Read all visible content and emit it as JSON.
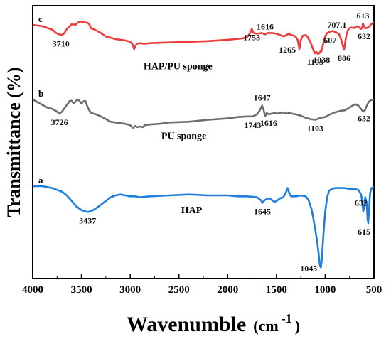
{
  "chart_data": {
    "type": "line",
    "title": "",
    "xlabel": "Wavenumble",
    "xlabel_unit": "(cm",
    "xlabel_unit_sup": "-1",
    "xlabel_unit_close": ")",
    "ylabel": "Transmittance (%)",
    "xlim": [
      4000,
      500
    ],
    "x_reversed": true,
    "x_ticks": [
      4000,
      3500,
      3000,
      2500,
      2000,
      1500,
      1000,
      500
    ],
    "grid": false,
    "legend": "none",
    "series": [
      {
        "name": "HAP/PU sponge",
        "curve_label": "c",
        "color": "#ee3b3b",
        "offset": 0,
        "points": [
          [
            4000,
            0.0
          ],
          [
            3900,
            0.02
          ],
          [
            3800,
            0.07
          ],
          [
            3760,
            0.12
          ],
          [
            3710,
            0.15
          ],
          [
            3680,
            0.13
          ],
          [
            3650,
            0.06
          ],
          [
            3620,
            0.02
          ],
          [
            3600,
            -0.01
          ],
          [
            3560,
            0.0
          ],
          [
            3540,
            -0.03
          ],
          [
            3510,
            -0.05
          ],
          [
            3480,
            -0.04
          ],
          [
            3440,
            -0.03
          ],
          [
            3420,
            -0.01
          ],
          [
            3400,
            0.05
          ],
          [
            3350,
            0.08
          ],
          [
            3300,
            0.12
          ],
          [
            3250,
            0.17
          ],
          [
            3200,
            0.19
          ],
          [
            3150,
            0.21
          ],
          [
            3100,
            0.22
          ],
          [
            3050,
            0.23
          ],
          [
            3000,
            0.25
          ],
          [
            2975,
            0.29
          ],
          [
            2960,
            0.36
          ],
          [
            2945,
            0.31
          ],
          [
            2930,
            0.28
          ],
          [
            2900,
            0.27
          ],
          [
            2855,
            0.28
          ],
          [
            2800,
            0.27
          ],
          [
            2600,
            0.26
          ],
          [
            2400,
            0.25
          ],
          [
            2200,
            0.24
          ],
          [
            2000,
            0.22
          ],
          [
            1850,
            0.2
          ],
          [
            1800,
            0.18
          ],
          [
            1770,
            0.12
          ],
          [
            1753,
            0.06
          ],
          [
            1735,
            0.12
          ],
          [
            1700,
            0.13
          ],
          [
            1650,
            0.12
          ],
          [
            1616,
            0.14
          ],
          [
            1590,
            0.12
          ],
          [
            1550,
            0.12
          ],
          [
            1500,
            0.13
          ],
          [
            1460,
            0.15
          ],
          [
            1420,
            0.17
          ],
          [
            1400,
            0.15
          ],
          [
            1370,
            0.13
          ],
          [
            1350,
            0.15
          ],
          [
            1320,
            0.16
          ],
          [
            1300,
            0.18
          ],
          [
            1280,
            0.23
          ],
          [
            1265,
            0.36
          ],
          [
            1252,
            0.23
          ],
          [
            1230,
            0.16
          ],
          [
            1200,
            0.15
          ],
          [
            1180,
            0.18
          ],
          [
            1150,
            0.26
          ],
          [
            1120,
            0.38
          ],
          [
            1103,
            0.42
          ],
          [
            1090,
            0.4
          ],
          [
            1075,
            0.43
          ],
          [
            1060,
            0.42
          ],
          [
            1045,
            0.38
          ],
          [
            1038,
            0.39
          ],
          [
            1020,
            0.28
          ],
          [
            1000,
            0.17
          ],
          [
            980,
            0.12
          ],
          [
            950,
            0.1
          ],
          [
            920,
            0.09
          ],
          [
            890,
            0.11
          ],
          [
            860,
            0.13
          ],
          [
            840,
            0.2
          ],
          [
            820,
            0.3
          ],
          [
            806,
            0.37
          ],
          [
            795,
            0.26
          ],
          [
            780,
            0.13
          ],
          [
            760,
            0.06
          ],
          [
            740,
            0.04
          ],
          [
            720,
            0.04
          ],
          [
            707,
            0.05
          ],
          [
            690,
            0.03
          ],
          [
            670,
            0.02
          ],
          [
            650,
            0.04
          ],
          [
            632,
            0.06
          ],
          [
            620,
            0.04
          ],
          [
            613,
            -0.02
          ],
          [
            600,
            0.03
          ],
          [
            590,
            0.05
          ],
          [
            560,
            0.04
          ],
          [
            540,
            0.01
          ],
          [
            520,
            -0.02
          ],
          [
            500,
            -0.04
          ]
        ],
        "peaks": [
          {
            "label": "3710",
            "x": 3710,
            "pos": "below"
          },
          {
            "label": "1753",
            "x": 1753,
            "pos": "below"
          },
          {
            "label": "1616",
            "x": 1616,
            "pos": "above"
          },
          {
            "label": "1265",
            "x": 1265,
            "pos": "left"
          },
          {
            "label": "1103",
            "x": 1103,
            "pos": "below"
          },
          {
            "label": "1038",
            "x": 1038,
            "pos": "below"
          },
          {
            "label": "607",
            "x": 950,
            "pos": "below"
          },
          {
            "label": "707.1",
            "x": 880,
            "pos": "above"
          },
          {
            "label": "806",
            "x": 806,
            "pos": "below"
          },
          {
            "label": "613",
            "x": 613,
            "pos": "above"
          },
          {
            "label": "632",
            "x": 560,
            "pos": "below"
          }
        ]
      },
      {
        "name": "PU sponge",
        "curve_label": "b",
        "color": "#6e6e6e",
        "offset": 1,
        "points": [
          [
            4000,
            0.0
          ],
          [
            3950,
            0.04
          ],
          [
            3900,
            0.08
          ],
          [
            3850,
            0.12
          ],
          [
            3800,
            0.14
          ],
          [
            3760,
            0.17
          ],
          [
            3726,
            0.21
          ],
          [
            3700,
            0.18
          ],
          [
            3670,
            0.12
          ],
          [
            3640,
            0.06
          ],
          [
            3620,
            0.02
          ],
          [
            3600,
            0.02
          ],
          [
            3580,
            0.06
          ],
          [
            3560,
            0.03
          ],
          [
            3540,
            0.0
          ],
          [
            3520,
            0.02
          ],
          [
            3500,
            0.06
          ],
          [
            3480,
            0.03
          ],
          [
            3460,
            0.02
          ],
          [
            3440,
            0.1
          ],
          [
            3420,
            0.16
          ],
          [
            3400,
            0.2
          ],
          [
            3350,
            0.22
          ],
          [
            3300,
            0.25
          ],
          [
            3250,
            0.29
          ],
          [
            3200,
            0.33
          ],
          [
            3150,
            0.34
          ],
          [
            3100,
            0.35
          ],
          [
            3050,
            0.36
          ],
          [
            3000,
            0.38
          ],
          [
            2970,
            0.42
          ],
          [
            2950,
            0.39
          ],
          [
            2930,
            0.41
          ],
          [
            2900,
            0.4
          ],
          [
            2870,
            0.41
          ],
          [
            2850,
            0.38
          ],
          [
            2800,
            0.37
          ],
          [
            2700,
            0.36
          ],
          [
            2600,
            0.34
          ],
          [
            2400,
            0.33
          ],
          [
            2200,
            0.3
          ],
          [
            2000,
            0.28
          ],
          [
            1900,
            0.26
          ],
          [
            1800,
            0.25
          ],
          [
            1743,
            0.25
          ],
          [
            1700,
            0.22
          ],
          [
            1670,
            0.16
          ],
          [
            1647,
            0.09
          ],
          [
            1630,
            0.16
          ],
          [
            1616,
            0.25
          ],
          [
            1600,
            0.2
          ],
          [
            1580,
            0.22
          ],
          [
            1550,
            0.21
          ],
          [
            1520,
            0.2
          ],
          [
            1500,
            0.21
          ],
          [
            1460,
            0.2
          ],
          [
            1430,
            0.19
          ],
          [
            1400,
            0.21
          ],
          [
            1370,
            0.2
          ],
          [
            1340,
            0.21
          ],
          [
            1300,
            0.22
          ],
          [
            1250,
            0.24
          ],
          [
            1200,
            0.27
          ],
          [
            1150,
            0.29
          ],
          [
            1103,
            0.3
          ],
          [
            1080,
            0.29
          ],
          [
            1050,
            0.27
          ],
          [
            1000,
            0.26
          ],
          [
            950,
            0.22
          ],
          [
            900,
            0.19
          ],
          [
            850,
            0.17
          ],
          [
            800,
            0.16
          ],
          [
            760,
            0.13
          ],
          [
            720,
            0.09
          ],
          [
            690,
            0.07
          ],
          [
            660,
            0.09
          ],
          [
            632,
            0.14
          ],
          [
            610,
            0.18
          ],
          [
            590,
            0.15
          ],
          [
            570,
            0.08
          ],
          [
            550,
            0.03
          ],
          [
            530,
            0.01
          ],
          [
            500,
            0.0
          ]
        ],
        "peaks": [
          {
            "label": "3726",
            "x": 3726,
            "pos": "below"
          },
          {
            "label": "1743",
            "x": 1743,
            "pos": "below"
          },
          {
            "label": "1647",
            "x": 1647,
            "pos": "above"
          },
          {
            "label": "1616",
            "x": 1580,
            "pos": "below"
          },
          {
            "label": "1103",
            "x": 1103,
            "pos": "below"
          },
          {
            "label": "632",
            "x": 590,
            "pos": "below"
          }
        ]
      },
      {
        "name": "HAP",
        "curve_label": "a",
        "color": "#1f7fe0",
        "offset": 2,
        "points": [
          [
            4000,
            0.0
          ],
          [
            3900,
            0.0
          ],
          [
            3850,
            0.01
          ],
          [
            3800,
            0.02
          ],
          [
            3750,
            0.04
          ],
          [
            3700,
            0.06
          ],
          [
            3650,
            0.1
          ],
          [
            3600,
            0.16
          ],
          [
            3550,
            0.22
          ],
          [
            3500,
            0.26
          ],
          [
            3437,
            0.28
          ],
          [
            3400,
            0.27
          ],
          [
            3350,
            0.24
          ],
          [
            3300,
            0.2
          ],
          [
            3250,
            0.16
          ],
          [
            3200,
            0.12
          ],
          [
            3150,
            0.1
          ],
          [
            3100,
            0.09
          ],
          [
            3050,
            0.1
          ],
          [
            3000,
            0.11
          ],
          [
            2950,
            0.11
          ],
          [
            2900,
            0.12
          ],
          [
            2800,
            0.11
          ],
          [
            2600,
            0.1
          ],
          [
            2400,
            0.09
          ],
          [
            2200,
            0.1
          ],
          [
            2000,
            0.1
          ],
          [
            1900,
            0.11
          ],
          [
            1800,
            0.11
          ],
          [
            1700,
            0.12
          ],
          [
            1660,
            0.15
          ],
          [
            1645,
            0.18
          ],
          [
            1620,
            0.15
          ],
          [
            1580,
            0.13
          ],
          [
            1560,
            0.14
          ],
          [
            1520,
            0.17
          ],
          [
            1500,
            0.16
          ],
          [
            1460,
            0.13
          ],
          [
            1430,
            0.12
          ],
          [
            1400,
            0.06
          ],
          [
            1385,
            0.02
          ],
          [
            1370,
            0.07
          ],
          [
            1350,
            0.11
          ],
          [
            1300,
            0.11
          ],
          [
            1250,
            0.1
          ],
          [
            1200,
            0.11
          ],
          [
            1170,
            0.15
          ],
          [
            1140,
            0.25
          ],
          [
            1120,
            0.36
          ],
          [
            1100,
            0.48
          ],
          [
            1080,
            0.62
          ],
          [
            1065,
            0.75
          ],
          [
            1055,
            0.85
          ],
          [
            1045,
            0.88
          ],
          [
            1035,
            0.8
          ],
          [
            1020,
            0.55
          ],
          [
            1000,
            0.28
          ],
          [
            980,
            0.12
          ],
          [
            960,
            0.05
          ],
          [
            930,
            0.03
          ],
          [
            900,
            0.02
          ],
          [
            850,
            0.02
          ],
          [
            800,
            0.02
          ],
          [
            750,
            0.03
          ],
          [
            700,
            0.03
          ],
          [
            660,
            0.04
          ],
          [
            632,
            0.09
          ],
          [
            620,
            0.16
          ],
          [
            610,
            0.27
          ],
          [
            600,
            0.24
          ],
          [
            590,
            0.12
          ],
          [
            575,
            0.18
          ],
          [
            565,
            0.36
          ],
          [
            558,
            0.4
          ],
          [
            550,
            0.26
          ],
          [
            540,
            0.08
          ],
          [
            525,
            0.02
          ],
          [
            500,
            0.01
          ]
        ],
        "peaks": [
          {
            "label": "3437",
            "x": 3437,
            "pos": "below"
          },
          {
            "label": "1645",
            "x": 1645,
            "pos": "below"
          },
          {
            "label": "1045",
            "x": 1045,
            "pos": "left"
          },
          {
            "label": "632",
            "x": 632,
            "pos": "below"
          },
          {
            "label": "615",
            "x": 558,
            "pos": "below"
          }
        ]
      }
    ]
  }
}
